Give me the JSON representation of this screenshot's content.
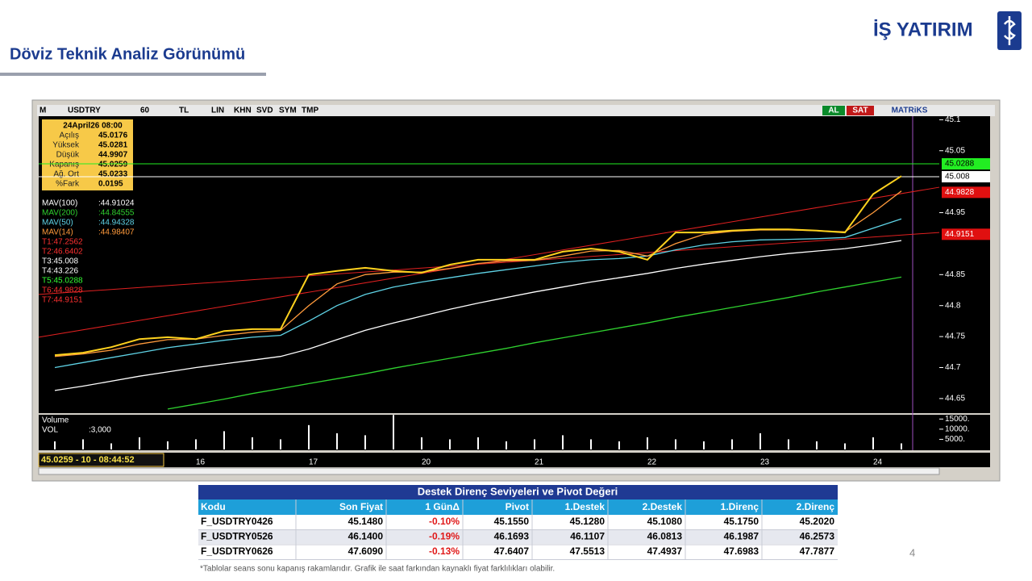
{
  "header": {
    "title": "Döviz Teknik Analiz Görünümü",
    "logo": "İŞ YATIRIM"
  },
  "toolbar": {
    "menu": "M",
    "symbol": "USDTRY",
    "period": "60",
    "currency": "TL",
    "buttons": [
      "LIN",
      "KHN",
      "SVD",
      "SYM",
      "TMP"
    ],
    "buy": "AL",
    "sell": "SAT",
    "brand": "MATRiKS"
  },
  "info_box": {
    "date": "24April26 08:00",
    "rows": [
      [
        "Açılış",
        "45.0176"
      ],
      [
        "Yüksek",
        "45.0281"
      ],
      [
        "Düşük",
        "44.9907"
      ],
      [
        "Kapanış",
        "45.0259"
      ],
      [
        "Ağ. Ort",
        "45.0233"
      ],
      [
        "%Fark",
        "0.0195"
      ]
    ]
  },
  "trend_labels": [
    {
      "text": "T1:47.2562",
      "color": "#ff3030"
    },
    {
      "text": "T2:46.6402",
      "color": "#ff3030"
    },
    {
      "text": "T3:45.008",
      "color": "#ffffff"
    },
    {
      "text": "T4:43.226",
      "color": "#ffffff"
    },
    {
      "text": "T5:45.0288",
      "color": "#33ff33"
    },
    {
      "text": "T6:44.9828",
      "color": "#ff3030"
    },
    {
      "text": "T7:44.9151",
      "color": "#ff3030"
    }
  ],
  "volume_labels": {
    "title": "Volume",
    "name": "VOL",
    "value": ":3,000"
  },
  "status": "45.0259 - 10 - 08:44:52",
  "chart_data": [
    {
      "type": "line",
      "categories": [
        null,
        null,
        null,
        null,
        null,
        "16",
        null,
        null,
        null,
        "17",
        null,
        null,
        null,
        "20",
        null,
        null,
        null,
        "21",
        null,
        null,
        null,
        "22",
        null,
        null,
        null,
        "23",
        null,
        null,
        null,
        "24",
        null
      ],
      "series": [
        {
          "name": "MAV(100)",
          "legend_value": ":44.91024",
          "color": "#ffffff",
          "values": [
            44.663,
            44.67,
            44.678,
            44.686,
            44.693,
            44.7,
            44.706,
            44.712,
            44.718,
            44.73,
            44.745,
            44.76,
            44.772,
            44.783,
            44.794,
            44.804,
            44.813,
            44.822,
            44.83,
            44.838,
            44.845,
            44.852,
            44.86,
            44.867,
            44.873,
            44.879,
            44.884,
            44.888,
            44.892,
            44.898,
            44.905
          ]
        },
        {
          "name": "MAV(200)",
          "legend_value": ":44.84555",
          "color": "#2fd12f",
          "values": [
            null,
            null,
            null,
            null,
            44.633,
            44.641,
            44.649,
            44.658,
            44.666,
            44.674,
            44.682,
            44.69,
            44.699,
            44.707,
            44.715,
            44.723,
            44.731,
            44.74,
            44.748,
            44.756,
            44.764,
            44.772,
            44.781,
            44.789,
            44.797,
            44.805,
            44.813,
            44.822,
            44.83,
            44.838,
            44.846
          ]
        },
        {
          "name": "MAV(50)",
          "legend_value": ":44.94328",
          "color": "#5fd3e6",
          "values": [
            44.7,
            44.708,
            44.716,
            44.724,
            44.732,
            44.738,
            44.744,
            44.749,
            44.752,
            44.775,
            44.8,
            44.818,
            44.83,
            44.838,
            44.845,
            44.852,
            44.858,
            44.864,
            44.87,
            44.874,
            44.876,
            44.88,
            44.89,
            44.898,
            44.903,
            44.906,
            44.907,
            44.908,
            44.91,
            44.925,
            44.94
          ]
        },
        {
          "name": "MAV(14)",
          "legend_value": ":44.98407",
          "color": "#ff9a3c",
          "values": [
            44.718,
            44.722,
            44.728,
            44.738,
            44.745,
            44.746,
            44.752,
            44.757,
            44.76,
            44.8,
            44.835,
            44.85,
            44.854,
            44.854,
            44.86,
            44.868,
            44.872,
            44.873,
            44.88,
            44.888,
            44.889,
            44.88,
            44.9,
            44.915,
            44.92,
            44.922,
            44.922,
            44.921,
            44.919,
            44.95,
            44.985
          ]
        },
        {
          "name": "USDTRY",
          "color": "#ffd21e",
          "values": [
            44.72,
            44.724,
            44.733,
            44.746,
            44.749,
            44.746,
            44.759,
            44.762,
            44.762,
            44.85,
            44.856,
            44.861,
            44.856,
            44.853,
            44.866,
            44.874,
            44.874,
            44.874,
            44.887,
            44.892,
            44.887,
            44.874,
            44.918,
            44.918,
            44.921,
            44.923,
            44.923,
            44.921,
            44.918,
            44.98,
            45.009
          ]
        }
      ],
      "trendlines": [
        {
          "values": [
            44.749,
            44.991
          ],
          "color": "#e02020"
        },
        {
          "values": [
            44.818,
            44.918
          ],
          "color": "#e02020"
        }
      ],
      "price_tags": [
        {
          "value": 45.0288,
          "color": "#22ee22"
        },
        {
          "value": 45.008,
          "color": "#ffffff"
        },
        {
          "value": 44.9828,
          "color": "#e01010"
        },
        {
          "value": 44.9151,
          "color": "#e01010"
        }
      ],
      "ylim": [
        44.629,
        45.107
      ],
      "yticks": [
        44.65,
        44.7,
        44.75,
        44.8,
        44.85,
        44.95,
        45.05,
        45.1
      ],
      "grid": false
    },
    {
      "type": "bar",
      "color": "#ffffff",
      "values": [
        4000,
        5000,
        3000,
        6000,
        4000,
        5000,
        9000,
        6000,
        5000,
        12000,
        8000,
        7000,
        17000,
        6000,
        5000,
        6000,
        4000,
        5000,
        7000,
        5000,
        4000,
        6000,
        5000,
        4000,
        5000,
        8000,
        5000,
        4000,
        3000,
        6000,
        3000
      ],
      "ylim": [
        0,
        17500
      ],
      "yticks": [
        {
          "value": 5000,
          "label": "5000."
        },
        {
          "value": 10000,
          "label": "10000."
        },
        {
          "value": 15000,
          "label": "15000."
        }
      ]
    }
  ],
  "table": {
    "title": "Destek Direnç Seviyeleri ve Pivot Değeri",
    "header": [
      "Kodu",
      "Son Fiyat",
      "1 GünΔ",
      "Pivot",
      "1.Destek",
      "2.Destek",
      "1.Direnç",
      "2.Direnç"
    ],
    "rows": [
      [
        "F_USDTRY0426",
        "45.1480",
        "-0.10%",
        "45.1550",
        "45.1280",
        "45.1080",
        "45.1750",
        "45.2020"
      ],
      [
        "F_USDTRY0526",
        "46.1400",
        "-0.19%",
        "46.1693",
        "46.1107",
        "46.0813",
        "46.1987",
        "46.2573"
      ],
      [
        "F_USDTRY0626",
        "47.6090",
        "-0.13%",
        "47.6407",
        "47.5513",
        "47.4937",
        "47.6983",
        "47.7877"
      ]
    ]
  },
  "footnote": "*Tablolar seans sonu kapanış rakamlarıdır. Grafik ile saat farkından kaynaklı fiyat farklılıkları olabilir.",
  "page_number": "4"
}
